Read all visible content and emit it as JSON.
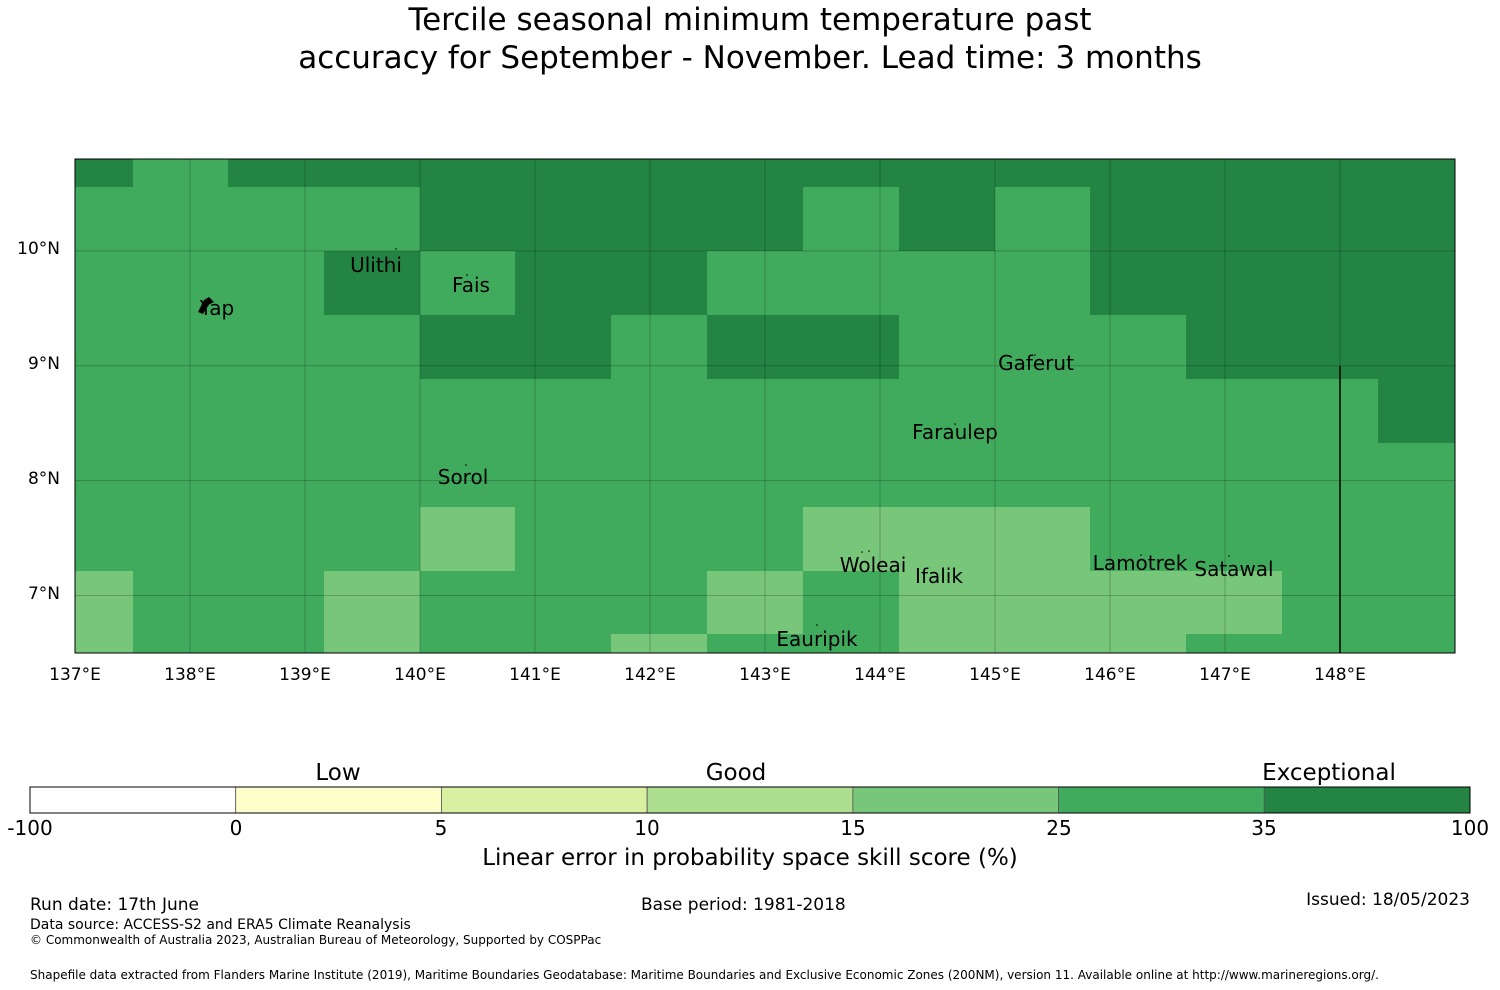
{
  "title": {
    "line1": "Tercile seasonal minimum temperature past",
    "line2": "accuracy for September - November. Lead time: 3 months"
  },
  "map": {
    "lon_range": [
      137.0,
      149.0
    ],
    "lat_range": [
      6.5,
      10.8
    ],
    "x_ticks": [
      "137°E",
      "138°E",
      "139°E",
      "140°E",
      "141°E",
      "142°E",
      "143°E",
      "144°E",
      "145°E",
      "146°E",
      "147°E",
      "148°E"
    ],
    "y_ticks": [
      "10°N",
      "9°N",
      "8°N",
      "7°N"
    ],
    "grid": true,
    "skill_colors": {
      "exceptional": "#238443",
      "very_good": "#41ab5d",
      "good": "#78c679"
    },
    "places": [
      {
        "name": "Yap",
        "lon": 138.22,
        "lat": 9.53
      },
      {
        "name": "Ulithi",
        "lon": 139.62,
        "lat": 9.89
      },
      {
        "name": "Fais",
        "lon": 140.44,
        "lat": 9.72
      },
      {
        "name": "Gaferut",
        "lon": 145.36,
        "lat": 9.01
      },
      {
        "name": "Faraulep",
        "lon": 144.66,
        "lat": 8.42
      },
      {
        "name": "Sorol",
        "lon": 140.38,
        "lat": 8.04
      },
      {
        "name": "Woleai",
        "lon": 143.85,
        "lat": 7.26
      },
      {
        "name": "Ifalik",
        "lon": 144.51,
        "lat": 7.16
      },
      {
        "name": "Lamotrek",
        "lon": 146.25,
        "lat": 7.28
      },
      {
        "name": "Satawal",
        "lon": 147.08,
        "lat": 7.23
      },
      {
        "name": "Eauripik",
        "lon": 143.45,
        "lat": 6.61
      }
    ]
  },
  "colorbar": {
    "categories": [
      "Low",
      "Good",
      "Exceptional"
    ],
    "ticks": [
      "-100",
      "0",
      "5",
      "10",
      "15",
      "25",
      "35",
      "100"
    ],
    "colors": [
      "#ffffff",
      "#ffffcc",
      "#d9f0a3",
      "#addd8e",
      "#78c679",
      "#41ab5d",
      "#238443"
    ],
    "label": "Linear error in probability space skill score (%)"
  },
  "footer": {
    "run_date": "Run date: 17th June",
    "base_period": "Base period: 1981-2018",
    "issued": "Issued: 18/05/2023",
    "data_source": "Data source: ACCESS-S2 and ERA5 Climate Reanalysis",
    "copyright": "© Commonwealth of Australia 2023, Australian Bureau of Meteorology, Supported by COSPPac",
    "shapefile": "Shapefile data extracted from Flanders Marine Institute (2019), Maritime Boundaries Geodatabase: Maritime Boundaries and Exclusive Economic Zones (200NM), version 11. Available online at http://www.marineregions.org/."
  }
}
